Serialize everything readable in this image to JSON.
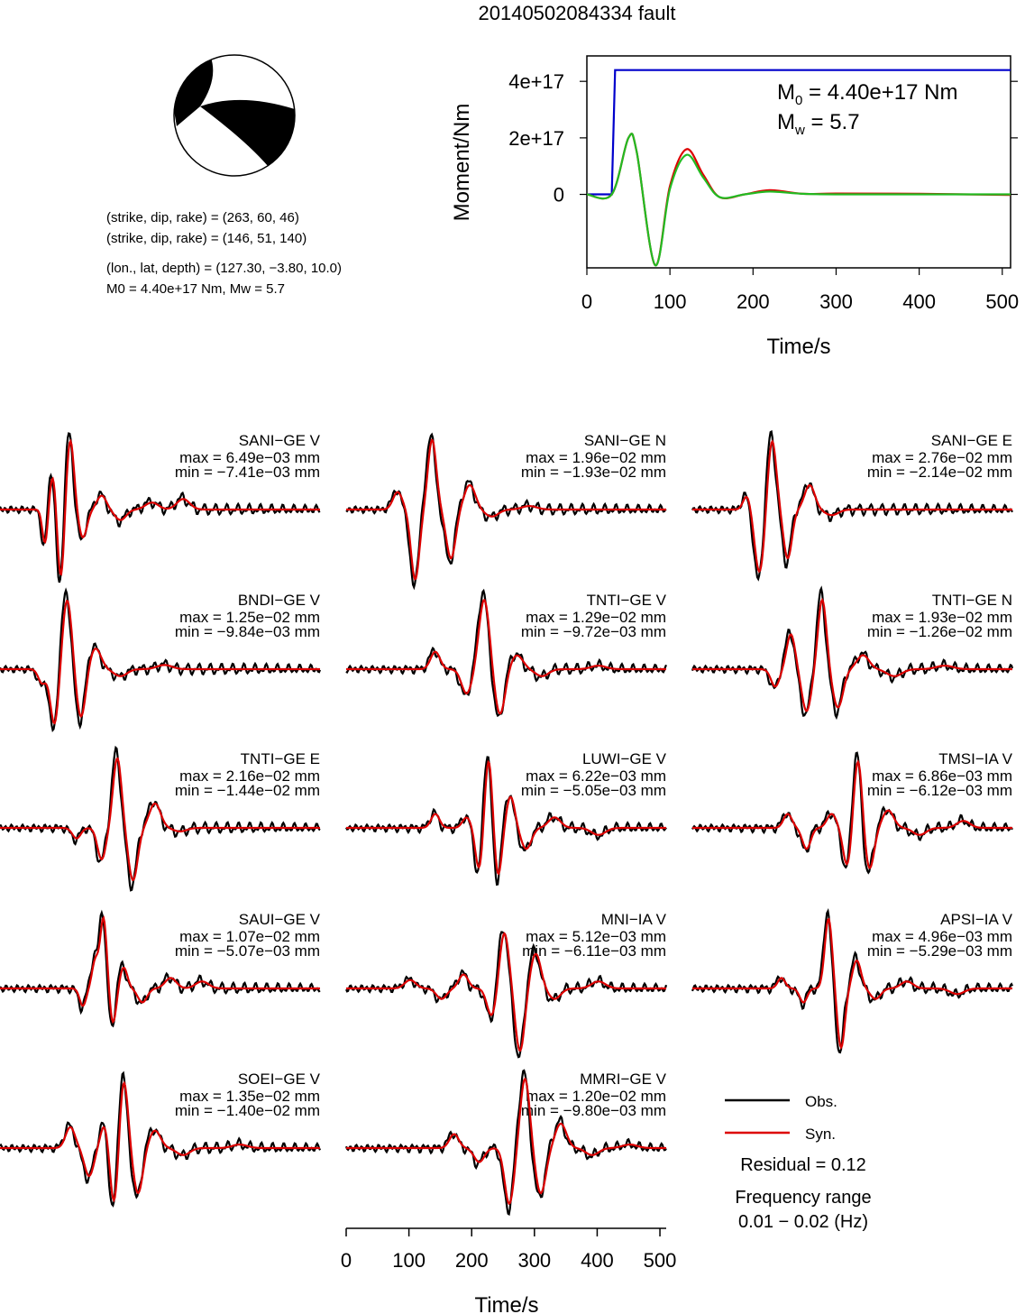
{
  "title": "20140502084334 fault",
  "mechanism": {
    "plane1": "(strike, dip, rake) = (263, 60, 46)",
    "plane2": "(strike, dip, rake) = (146, 51, 140)",
    "location": "(lon., lat, depth) = (127.30, −3.80, 10.0)",
    "moment_line": "M0 = 4.40e+17 Nm, Mw = 5.7"
  },
  "moment_plot": {
    "ylabel": "Moment/Nm",
    "xlabel": "Time/s",
    "m0_text": "4.40e+17 Nm",
    "mw_text": "5.7",
    "x_ticks": [
      "0",
      "100",
      "200",
      "300",
      "400",
      "500"
    ],
    "y_ticks": [
      "0",
      "2e+17",
      "4e+17"
    ]
  },
  "legend": {
    "obs": "Obs.",
    "syn": "Syn.",
    "residual": "Residual = 0.12",
    "freq_label": "Frequency range",
    "freq_value": "0.01 − 0.02 (Hz)"
  },
  "waveform_axis": {
    "xlabel": "Time/s",
    "ticks": [
      "0",
      "100",
      "200",
      "300",
      "400",
      "500"
    ]
  },
  "colors": {
    "observed": "#000000",
    "synthetic": "#dd0000",
    "cumulative_moment": "#0000cc",
    "moment_rate_green": "#22bb22"
  },
  "chart_data": [
    {
      "type": "line",
      "title": "",
      "xlabel": "Time/s",
      "ylabel": "Moment/Nm",
      "xlim": [
        0,
        510
      ],
      "ylim": [
        -2.6e+17,
        4.9e+17
      ],
      "annotation": "M0 = 4.40e+17 Nm, Mw = 5.7",
      "series": [
        {
          "x": [
            0,
            30,
            34,
            510
          ],
          "values": [
            0,
            0,
            4.4e+17,
            4.4e+17
          ]
        },
        {
          "x": [
            0,
            30,
            50,
            60,
            82,
            100,
            120,
            140,
            160,
            190,
            220,
            260,
            300,
            400,
            510
          ],
          "values": [
            0,
            0,
            2e+17,
            1.5e+17,
            -2.5e+17,
            3e+16,
            1.6e+17,
            7e+16,
            -1e+16,
            0,
            1.5e+16,
            2000000000000000.0,
            3000000000000000.0,
            2000000000000000.0,
            -2000000000000000.0
          ]
        },
        {
          "x": [
            0,
            30,
            50,
            60,
            82,
            100,
            120,
            140,
            160,
            190,
            220,
            260,
            300,
            400,
            510
          ],
          "values": [
            0,
            0,
            2e+17,
            1.5e+17,
            -2.5e+17,
            2e+16,
            1.4e+17,
            6e+16,
            -1e+16,
            0,
            1e+16,
            2000000000000000.0,
            0,
            0,
            0
          ]
        }
      ]
    },
    {
      "type": "line",
      "xlabel": "Time/s",
      "xlim": [
        0,
        510
      ],
      "series": [
        {
          "name": "Obs."
        },
        {
          "name": "Syn."
        }
      ],
      "stations": [
        {
          "name": "SANI−GE V",
          "max": "max = 6.49e−03 mm",
          "min": "min = −7.41e−03 mm",
          "pulses": [
            [
              70,
              -0.5,
              6
            ],
            [
              82,
              0.5,
              7
            ],
            [
              95,
              -1.0,
              7
            ],
            [
              110,
              1.0,
              8
            ],
            [
              130,
              -0.4,
              9
            ],
            [
              160,
              0.2,
              10
            ],
            [
              190,
              -0.15,
              12
            ],
            [
              240,
              0.1,
              14
            ],
            [
              290,
              0.15,
              14
            ]
          ]
        },
        {
          "name": "SANI−GE N",
          "max": "max = 1.96e−02 mm",
          "min": "min = −1.93e−02 mm",
          "pulses": [
            [
              80,
              0.25,
              10
            ],
            [
              108,
              -1.0,
              9
            ],
            [
              135,
              1.0,
              9
            ],
            [
              165,
              -0.7,
              10
            ],
            [
              195,
              0.35,
              12
            ],
            [
              230,
              -0.1,
              14
            ],
            [
              290,
              0.05,
              16
            ]
          ]
        },
        {
          "name": "SANI−GE E",
          "max": "max = 2.76e−02 mm",
          "min": "min = −2.14e−02 mm",
          "pulses": [
            [
              85,
              0.2,
              8
            ],
            [
              105,
              -0.9,
              10
            ],
            [
              125,
              1.0,
              9
            ],
            [
              150,
              -0.7,
              9
            ],
            [
              185,
              0.35,
              11
            ],
            [
              220,
              -0.08,
              14
            ]
          ]
        },
        {
          "name": "BNDI−GE V",
          "max": "max = 1.25e−02 mm",
          "min": "min = −9.84e−03 mm",
          "pulses": [
            [
              65,
              -0.2,
              8
            ],
            [
              85,
              -0.8,
              9
            ],
            [
              105,
              1.0,
              10
            ],
            [
              127,
              -0.7,
              10
            ],
            [
              150,
              0.3,
              12
            ],
            [
              190,
              -0.1,
              14
            ],
            [
              260,
              0.06,
              16
            ]
          ]
        },
        {
          "name": "TNTI−GE V",
          "max": "max = 1.29e−02 mm",
          "min": "min = −9.72e−03 mm",
          "pulses": [
            [
              140,
              0.25,
              10
            ],
            [
              190,
              -0.35,
              11
            ],
            [
              218,
              1.0,
              11
            ],
            [
              243,
              -0.65,
              11
            ],
            [
              270,
              0.2,
              13
            ],
            [
              310,
              -0.1,
              14
            ],
            [
              400,
              0.05,
              16
            ]
          ]
        },
        {
          "name": "TNTI−GE N",
          "max": "max = 1.93e−02 mm",
          "min": "min = −1.26e−02 mm",
          "pulses": [
            [
              130,
              -0.25,
              9
            ],
            [
              155,
              0.5,
              9
            ],
            [
              180,
              -0.6,
              10
            ],
            [
              205,
              1.0,
              9
            ],
            [
              230,
              -0.55,
              11
            ],
            [
              270,
              0.2,
              13
            ],
            [
              320,
              -0.1,
              16
            ],
            [
              400,
              0.05,
              18
            ]
          ]
        },
        {
          "name": "TNTI−GE E",
          "max": "max = 2.16e−02 mm",
          "min": "min = −1.44e−02 mm",
          "pulses": [
            [
              120,
              -0.15,
              9
            ],
            [
              160,
              -0.45,
              9
            ],
            [
              185,
              1.0,
              9
            ],
            [
              210,
              -0.75,
              10
            ],
            [
              245,
              0.35,
              12
            ],
            [
              285,
              -0.05,
              14
            ]
          ]
        },
        {
          "name": "LUWI−GE V",
          "max": "max = 6.22e−03 mm",
          "min": "min = −5.05e−03 mm",
          "pulses": [
            [
              140,
              0.2,
              9
            ],
            [
              190,
              0.15,
              9
            ],
            [
              210,
              -0.6,
              8
            ],
            [
              225,
              1.0,
              8
            ],
            [
              240,
              -0.7,
              8
            ],
            [
              260,
              0.45,
              9
            ],
            [
              285,
              -0.3,
              11
            ],
            [
              330,
              0.15,
              13
            ],
            [
              400,
              -0.1,
              15
            ]
          ]
        },
        {
          "name": "TMSI−IA V",
          "max": "max = 6.86e−03 mm",
          "min": "min = −6.12e−03 mm",
          "pulses": [
            [
              150,
              0.2,
              9
            ],
            [
              180,
              -0.3,
              9
            ],
            [
              220,
              0.2,
              10
            ],
            [
              245,
              -0.55,
              9
            ],
            [
              262,
              1.0,
              9
            ],
            [
              280,
              -0.6,
              10
            ],
            [
              310,
              0.25,
              12
            ],
            [
              360,
              -0.1,
              14
            ],
            [
              430,
              0.1,
              14
            ]
          ]
        },
        {
          "name": "SAUI−GE V",
          "max": "max = 1.07e−02 mm",
          "min": "min = −5.07e−03 mm",
          "pulses": [
            [
              130,
              -0.25,
              7
            ],
            [
              150,
              0.4,
              7
            ],
            [
              163,
              1.0,
              7
            ],
            [
              178,
              -0.5,
              7
            ],
            [
              195,
              0.3,
              8
            ],
            [
              225,
              -0.2,
              10
            ],
            [
              270,
              0.15,
              12
            ],
            [
              320,
              0.1,
              14
            ]
          ]
        },
        {
          "name": "MNI−IA V",
          "max": "max = 5.12e−03 mm",
          "min": "min = −6.11e−03 mm",
          "pulses": [
            [
              100,
              0.12,
              12
            ],
            [
              150,
              -0.15,
              11
            ],
            [
              185,
              0.2,
              10
            ],
            [
              230,
              -0.4,
              10
            ],
            [
              250,
              0.8,
              10
            ],
            [
              275,
              -0.9,
              10
            ],
            [
              300,
              0.5,
              11
            ],
            [
              330,
              -0.15,
              13
            ],
            [
              400,
              0.1,
              15
            ]
          ]
        },
        {
          "name": "APSI−IA V",
          "max": "max = 4.96e−03 mm",
          "min": "min = −5.29e−03 mm",
          "pulses": [
            [
              140,
              0.15,
              8
            ],
            [
              175,
              -0.2,
              8
            ],
            [
              215,
              1.0,
              8
            ],
            [
              235,
              -0.85,
              8
            ],
            [
              260,
              0.4,
              9
            ],
            [
              290,
              -0.15,
              11
            ],
            [
              340,
              0.1,
              13
            ],
            [
              420,
              -0.08,
              15
            ]
          ]
        },
        {
          "name": "SOEI−GE V",
          "max": "max = 1.35e−02 mm",
          "min": "min = −1.40e−02 mm",
          "pulses": [
            [
              110,
              0.3,
              10
            ],
            [
              140,
              -0.4,
              10
            ],
            [
              165,
              0.35,
              9
            ],
            [
              180,
              -0.85,
              9
            ],
            [
              195,
              1.0,
              9
            ],
            [
              218,
              -0.65,
              10
            ],
            [
              245,
              0.25,
              12
            ],
            [
              290,
              -0.1,
              14
            ],
            [
              380,
              0.05,
              16
            ]
          ]
        },
        {
          "name": "MMRI−GE V",
          "max": "max = 1.20e−02 mm",
          "min": "min = −9.80e−03 mm",
          "pulses": [
            [
              170,
              0.2,
              10
            ],
            [
              210,
              -0.2,
              11
            ],
            [
              258,
              -0.8,
              10
            ],
            [
              283,
              1.0,
              10
            ],
            [
              308,
              -0.65,
              11
            ],
            [
              340,
              0.35,
              12
            ],
            [
              390,
              -0.1,
              14
            ],
            [
              450,
              0.05,
              16
            ]
          ]
        }
      ]
    }
  ]
}
